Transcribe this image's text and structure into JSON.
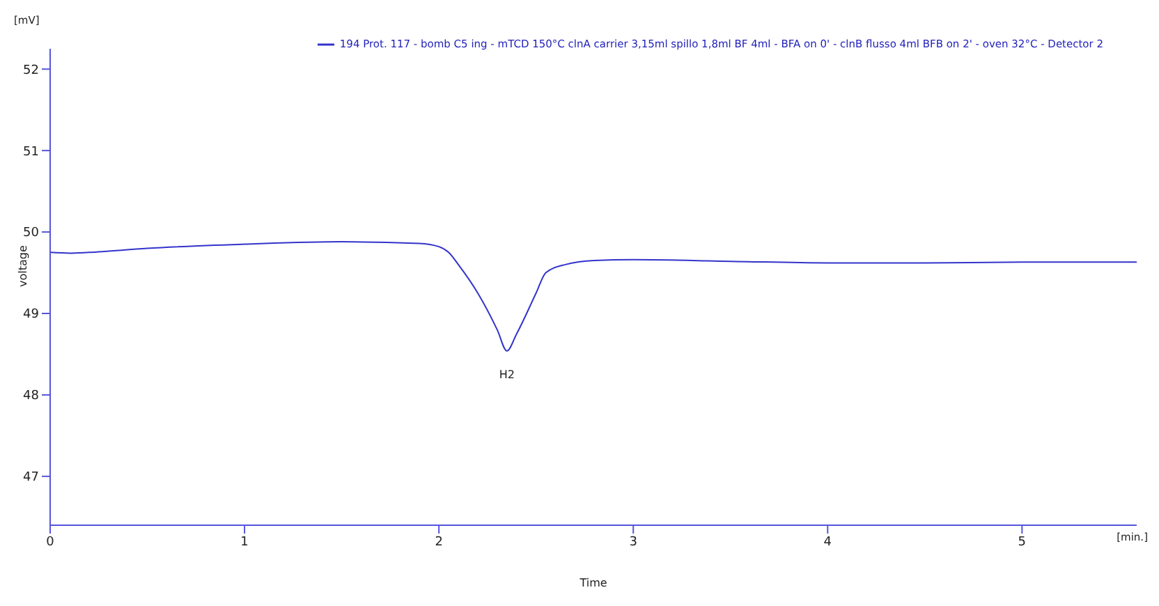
{
  "chart_data": {
    "type": "line",
    "xlabel": "Time",
    "ylabel": "voltage",
    "x": [
      0,
      0.1,
      0.2,
      0.5,
      1.0,
      1.5,
      1.9,
      2.0,
      2.05,
      2.1,
      2.2,
      2.3,
      2.35,
      2.4,
      2.5,
      2.55,
      2.65,
      2.8,
      3.0,
      3.5,
      4.0,
      4.5,
      5.0,
      5.59
    ],
    "series": [
      {
        "name": "194 Prot. 117 - bomb C5 ing - mTCD 150°C clnA carrier 3,15ml spillo 1,8ml BF 4ml - BFA on 0' - clnB flusso 4ml BFB on 2' - oven 32°C - Detector 2",
        "color": "#3333cc",
        "values": [
          49.75,
          49.74,
          49.75,
          49.8,
          49.85,
          49.88,
          49.86,
          49.82,
          49.75,
          49.6,
          49.25,
          48.8,
          48.54,
          48.75,
          49.25,
          49.5,
          49.6,
          49.65,
          49.66,
          49.64,
          49.62,
          49.62,
          49.63,
          49.63
        ]
      }
    ],
    "xlim": [
      0,
      5.59
    ],
    "xticks": [
      0,
      1,
      2,
      3,
      4,
      5
    ],
    "ylim": [
      46.4,
      52.25
    ],
    "yticks": [
      47,
      48,
      49,
      50,
      51,
      52
    ],
    "grid": false,
    "legend": "top right",
    "marker": "none",
    "line_style": "solid",
    "annotations": [
      {
        "text": "H2",
        "x": 2.35,
        "y": 48.54
      },
      "[mV]",
      "[min.]"
    ]
  }
}
